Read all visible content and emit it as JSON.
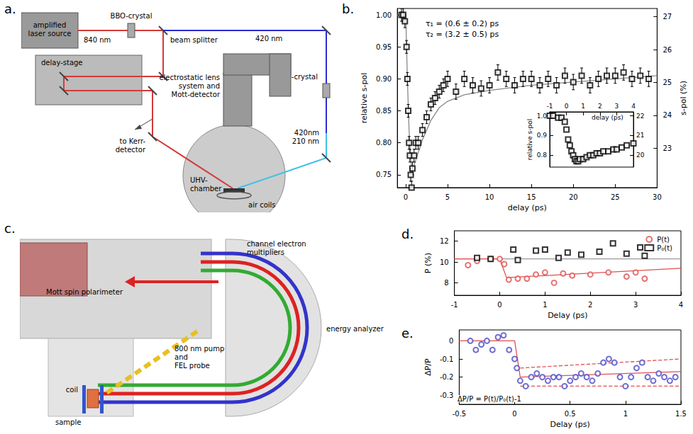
{
  "panel_letters": [
    "a.",
    "b.",
    "c.",
    "d.",
    "e."
  ],
  "diagram_a": {
    "source": [
      "amplified",
      "laser source"
    ],
    "wl_840": "840 nm",
    "bbo1": "BBO-crystal",
    "beam_splitter": "beam splitter",
    "wl_420": "420 nm",
    "bbo2": "BBO-crystal",
    "delay_stage": "delay-stage",
    "detector": [
      "electrostatic lens",
      "system and",
      "Mott-detector"
    ],
    "kerr": [
      "to Kerr-",
      "detector"
    ],
    "wl_out": [
      "420nm",
      "210 nm"
    ],
    "chamber": [
      "UHV-",
      "chamber"
    ],
    "coils": "air coils"
  },
  "diagram_c": {
    "polarimeter": "Mott spin polarimeter",
    "multipliers": [
      "channel electron",
      "multipliers"
    ],
    "analyzer": "energy analyzer",
    "beams": [
      "800 nm pump",
      "and",
      "FEL probe"
    ],
    "coil": "coil",
    "sample": "sample"
  },
  "chart_data": [
    {
      "type": "scatter",
      "x_label": "delay (ps)",
      "y_label": "relative s-pol",
      "y2_label": "s-pol (%)",
      "xlim": [
        -1,
        30
      ],
      "xticks": [
        0,
        5,
        10,
        15,
        20,
        25,
        30
      ],
      "ylim": [
        0.73,
        1.01
      ],
      "yticks": [
        0.75,
        {
          "value": 0.8,
          "label": "0.80"
        },
        0.85,
        {
          "value": 0.9,
          "label": "0.90"
        },
        0.95,
        {
          "value": 1,
          "label": "1.00"
        }
      ],
      "y2lim": [
        21.8,
        27.25
      ],
      "y2ticks": [
        23,
        24,
        25,
        26,
        27
      ],
      "grid": false,
      "annotations": [
        "τ₁ = (0.6 ± 0.2) ps",
        "τ₂ = (3.2 ± 0.5) ps"
      ],
      "series": [
        {
          "type": "scatter",
          "color": "#000000",
          "marker": "open square",
          "x": [
            -0.5,
            -0.3,
            -0.1,
            0.1,
            0.2,
            0.3,
            0.4,
            0.5,
            0.6,
            0.7,
            0.8,
            1.0,
            1.2,
            1.5,
            2.0,
            2.5,
            3.0,
            3.5,
            4.0,
            4.5,
            5,
            6,
            7,
            8,
            9,
            10,
            11,
            12,
            13,
            14,
            15,
            16,
            17,
            18,
            19,
            20,
            21,
            22,
            23,
            24,
            25,
            26,
            27,
            28,
            29
          ],
          "values": [
            1.0,
            1.0,
            0.99,
            0.95,
            0.9,
            0.85,
            0.8,
            0.78,
            0.75,
            0.73,
            0.76,
            0.78,
            0.8,
            0.8,
            0.82,
            0.84,
            0.86,
            0.87,
            0.88,
            0.89,
            0.9,
            0.88,
            0.9,
            0.89,
            0.885,
            0.89,
            0.91,
            0.9,
            0.89,
            0.9,
            0.9,
            0.89,
            0.9,
            0.89,
            0.905,
            0.895,
            0.905,
            0.89,
            0.9,
            0.905,
            0.905,
            0.91,
            0.9,
            0.905,
            0.9
          ],
          "errors": [
            0.01,
            0.01,
            0.01,
            0.01,
            0.01,
            0.01,
            0.01,
            0.01,
            0.01,
            0.01,
            0.01,
            0.01,
            0.01,
            0.01,
            0.01,
            0.01,
            0.01,
            0.01,
            0.01,
            0.01,
            0.012,
            0.012,
            0.012,
            0.012,
            0.012,
            0.012,
            0.012,
            0.012,
            0.012,
            0.012,
            0.012,
            0.012,
            0.012,
            0.012,
            0.012,
            0.012,
            0.012,
            0.012,
            0.012,
            0.012,
            0.012,
            0.012,
            0.012,
            0.012,
            0.012
          ]
        },
        {
          "type": "line",
          "color": "#888888",
          "line_style": "solid",
          "x": [
            -1,
            0,
            0.2,
            0.4,
            0.6,
            0.8,
            1,
            1.5,
            2,
            3,
            4,
            5,
            7,
            10,
            15,
            20,
            25,
            30
          ],
          "values": [
            1.0,
            1.0,
            0.9,
            0.82,
            0.77,
            0.76,
            0.765,
            0.785,
            0.805,
            0.835,
            0.855,
            0.865,
            0.875,
            0.882,
            0.89,
            0.895,
            0.9,
            0.905
          ]
        }
      ],
      "inset": {
        "x_label": "delay (ps)",
        "y_label": "relative s-pol",
        "xlim": [
          -1,
          4
        ],
        "xticks": [
          -1,
          0,
          1,
          2,
          3,
          4
        ],
        "ylim": [
          0.74,
          1.02
        ],
        "yticks": [
          0.8,
          0.9,
          {
            "value": 1,
            "label": "1.0"
          }
        ],
        "y2lim": [
          19.4,
          22.2
        ],
        "y2ticks": [
          20,
          21,
          22
        ],
        "series": [
          {
            "type": "scatter",
            "color": "#000000",
            "marker": "open square",
            "x": [
              -1,
              -0.8,
              -0.5,
              -0.3,
              -0.1,
              0,
              0.1,
              0.2,
              0.3,
              0.4,
              0.5,
              0.6,
              0.7,
              0.8,
              1.0,
              1.2,
              1.4,
              1.6,
              1.8,
              2.0,
              2.2,
              2.5,
              2.8,
              3.0,
              3.3,
              3.6,
              4.0
            ],
            "values": [
              1.0,
              1.0,
              0.99,
              0.99,
              0.97,
              0.93,
              0.88,
              0.85,
              0.82,
              0.8,
              0.78,
              0.77,
              0.77,
              0.78,
              0.78,
              0.79,
              0.8,
              0.8,
              0.81,
              0.81,
              0.82,
              0.82,
              0.83,
              0.83,
              0.84,
              0.85,
              0.86
            ]
          }
        ]
      }
    },
    {
      "type": "scatter",
      "x_label": "Delay (ps)",
      "y_label": "P (%)",
      "xlim": [
        -1,
        4
      ],
      "xticks": [
        -1,
        0,
        1,
        2,
        3,
        4
      ],
      "ylim": [
        6.8,
        13
      ],
      "yticks": [
        8,
        10,
        12
      ],
      "grid": false,
      "legend": "upper right",
      "series": [
        {
          "name": "P(t)",
          "type": "scatter",
          "color": "#e05050",
          "marker": "open circle",
          "x": [
            -0.7,
            -0.5,
            -0.2,
            0,
            0.1,
            0.2,
            0.4,
            0.6,
            0.8,
            1.0,
            1.2,
            1.4,
            1.6,
            2.0,
            2.4,
            2.8,
            3.0,
            3.2
          ],
          "values": [
            9.7,
            10.1,
            10.3,
            10.3,
            9.8,
            8.3,
            8.4,
            8.4,
            8.8,
            9.0,
            8.0,
            8.9,
            8.7,
            8.8,
            9.0,
            8.6,
            9.0,
            8.4
          ]
        },
        {
          "name": "P₀(t)",
          "type": "scatter",
          "color": "#000000",
          "marker": "open square",
          "x": [
            -0.5,
            -0.2,
            0.3,
            0.4,
            0.8,
            1.0,
            1.3,
            1.5,
            1.8,
            2.2,
            2.5,
            2.8,
            3.1,
            3.2
          ],
          "values": [
            10.4,
            10.3,
            11.2,
            10.2,
            11.1,
            11.2,
            10.4,
            10.9,
            10.7,
            11.0,
            11.8,
            10.8,
            11.4,
            10.6
          ]
        },
        {
          "type": "line",
          "color": "#999999",
          "line_style": "solid",
          "x": [
            -1,
            4
          ],
          "values": [
            10.3,
            10.3
          ]
        },
        {
          "type": "line",
          "color": "#e05050",
          "line_style": "solid",
          "x": [
            -1,
            0,
            0.15,
            4
          ],
          "values": [
            10.3,
            10.3,
            8.5,
            9.4
          ]
        }
      ]
    },
    {
      "type": "scatter",
      "x_label": "Delay (ps)",
      "y_label": "ΔP/P",
      "xlim": [
        -0.5,
        1.5
      ],
      "xticks": [
        -0.5,
        0,
        0.5,
        1,
        1.5
      ],
      "ylim": [
        -0.35,
        0.06
      ],
      "yticks": [
        -0.3,
        -0.2,
        -0.1,
        0
      ],
      "grid": false,
      "annotations": [
        "ΔP/P = P(t)/P₀(t)-1"
      ],
      "series": [
        {
          "type": "scatter",
          "color": "#4a4ac8",
          "marker": "open circle",
          "x": [
            -0.4,
            -0.35,
            -0.3,
            -0.25,
            -0.2,
            -0.15,
            -0.1,
            -0.05,
            0,
            0.02,
            0.05,
            0.1,
            0.15,
            0.2,
            0.25,
            0.3,
            0.35,
            0.4,
            0.45,
            0.5,
            0.55,
            0.6,
            0.65,
            0.7,
            0.75,
            0.8,
            0.85,
            0.9,
            0.95,
            1.0,
            1.05,
            1.1,
            1.15,
            1.2,
            1.25,
            1.3,
            1.35,
            1.4,
            1.45
          ],
          "values": [
            0.0,
            -0.05,
            -0.02,
            0.0,
            -0.05,
            0.02,
            0.03,
            -0.05,
            -0.1,
            -0.15,
            -0.22,
            -0.25,
            -0.2,
            -0.18,
            -0.2,
            -0.22,
            -0.2,
            -0.2,
            -0.25,
            -0.22,
            -0.2,
            -0.18,
            -0.2,
            -0.22,
            -0.18,
            -0.12,
            -0.1,
            -0.12,
            -0.2,
            -0.25,
            -0.2,
            -0.15,
            -0.12,
            -0.2,
            -0.22,
            -0.18,
            -0.2,
            -0.22,
            -0.2
          ]
        },
        {
          "type": "line",
          "color": "#e05050",
          "line_style": "solid",
          "x": [
            -0.5,
            0,
            0.05,
            1.5
          ],
          "values": [
            0,
            0,
            -0.2,
            -0.17
          ]
        },
        {
          "type": "line",
          "color": "#e05050",
          "line_style": "dashed",
          "x": [
            0.05,
            1.5
          ],
          "values": [
            -0.15,
            -0.1
          ]
        },
        {
          "type": "line",
          "color": "#e05050",
          "line_style": "dashed",
          "x": [
            0.05,
            1.5
          ],
          "values": [
            -0.25,
            -0.25
          ]
        }
      ]
    }
  ]
}
